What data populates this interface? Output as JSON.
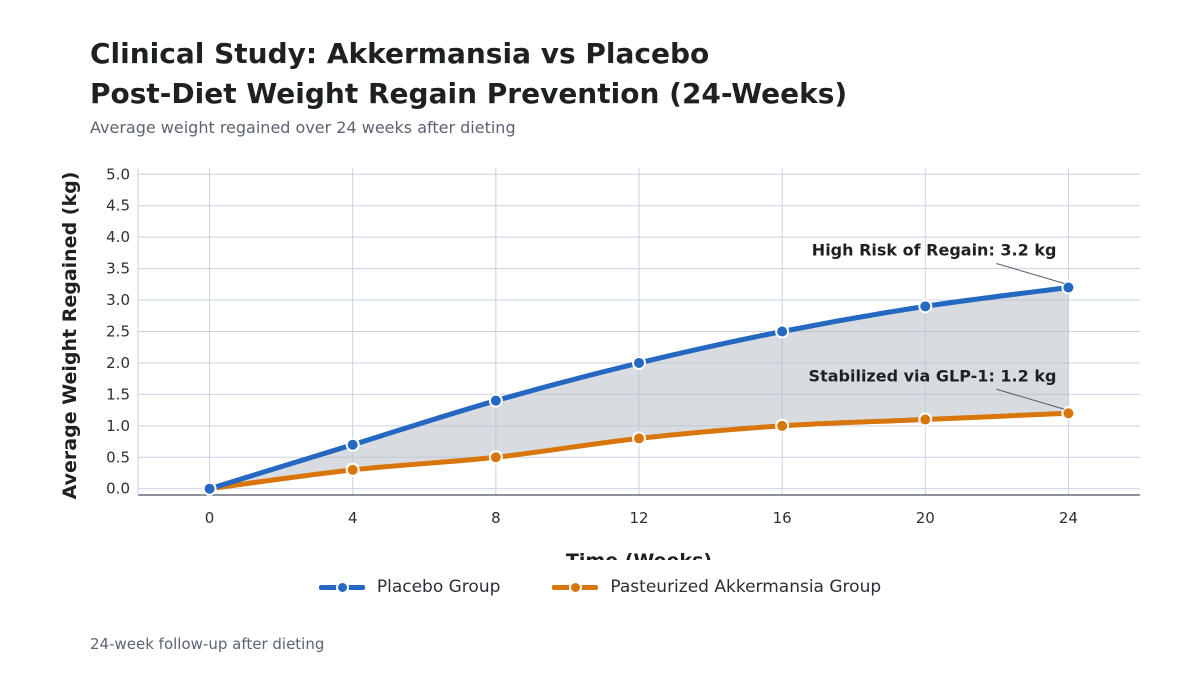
{
  "header": {
    "title_line1": "Clinical Study: Akkermansia vs Placebo",
    "title_line2": "Post-Diet Weight Regain Prevention (24-Weeks)",
    "subtitle": "Average weight regained over 24 weeks after dieting"
  },
  "footnote": "24-week follow-up after dieting",
  "chart_data": {
    "type": "line",
    "xlabel": "Time (Weeks)",
    "ylabel": "Average Weight Regained (kg)",
    "x": [
      0,
      4,
      8,
      12,
      16,
      20,
      24
    ],
    "xlim": [
      -2,
      26
    ],
    "ylim": [
      -0.1,
      5.1
    ],
    "yticks": [
      "0.0",
      "0.5",
      "1.0",
      "1.5",
      "2.0",
      "2.5",
      "3.0",
      "3.5",
      "4.0",
      "4.5",
      "5.0"
    ],
    "grid": true,
    "legend_position": "bottom-center",
    "fill_between_series": true,
    "series": [
      {
        "name": "Placebo Group",
        "color": "#2468c2",
        "values": [
          0.0,
          0.7,
          1.4,
          2.0,
          2.5,
          2.9,
          3.2
        ]
      },
      {
        "name": "Pasteurized Akkermansia Group",
        "color": "#d9760b",
        "values": [
          0.0,
          0.3,
          0.5,
          0.8,
          1.0,
          1.1,
          1.2
        ]
      }
    ],
    "annotations": [
      {
        "text": "High Risk of Regain: 3.2 kg",
        "x": 24,
        "y": 3.2
      },
      {
        "text": "Stabilized via GLP-1: 1.2 kg",
        "x": 24,
        "y": 1.2
      }
    ]
  }
}
